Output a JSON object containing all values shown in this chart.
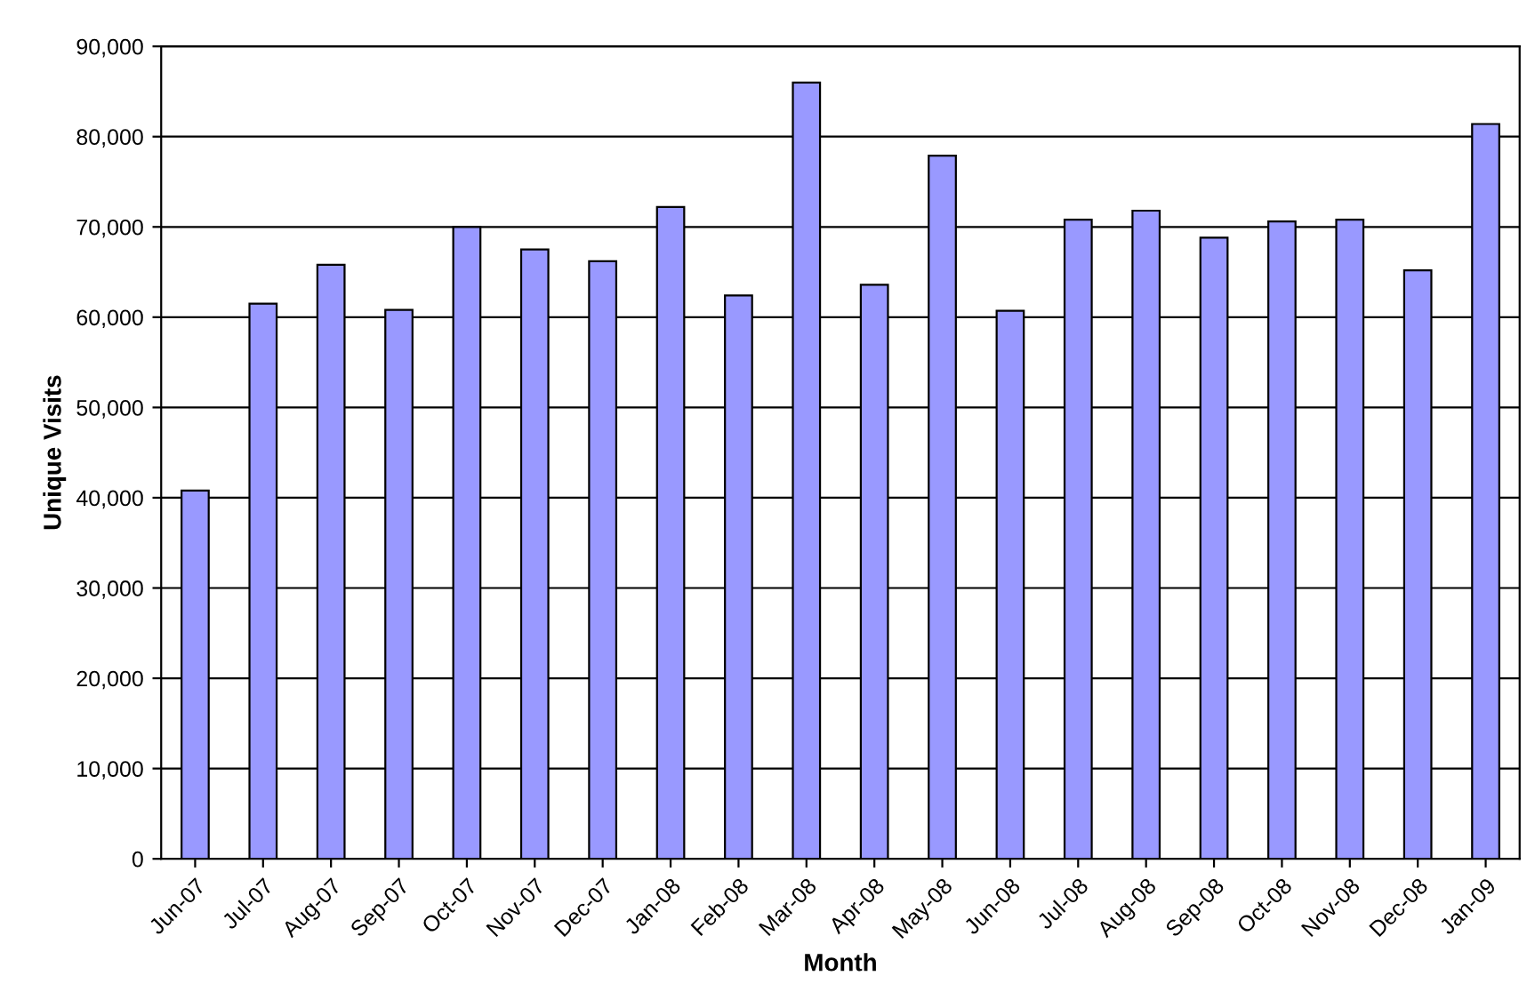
{
  "chart_data": {
    "type": "bar",
    "xlabel": "Month",
    "ylabel": "Unique Visits",
    "categories": [
      "Jun-07",
      "Jul-07",
      "Aug-07",
      "Sep-07",
      "Oct-07",
      "Nov-07",
      "Dec-07",
      "Jan-08",
      "Feb-08",
      "Mar-08",
      "Apr-08",
      "May-08",
      "Jun-08",
      "Jul-08",
      "Aug-08",
      "Sep-08",
      "Oct-08",
      "Nov-08",
      "Dec-08",
      "Jan-09"
    ],
    "values": [
      40800,
      61500,
      65800,
      60800,
      70000,
      67500,
      66200,
      72200,
      62400,
      86000,
      63600,
      77900,
      60700,
      70800,
      71800,
      68800,
      70600,
      70800,
      65200,
      81400
    ],
    "color": "#9999ff",
    "ylim": [
      0,
      90000
    ],
    "yticks": [
      {
        "value": 0,
        "label": "0"
      },
      {
        "value": 10000,
        "label": "10,000"
      },
      {
        "value": 20000,
        "label": "20,000"
      },
      {
        "value": 30000,
        "label": "30,000"
      },
      {
        "value": 40000,
        "label": "40,000"
      },
      {
        "value": 50000,
        "label": "50,000"
      },
      {
        "value": 60000,
        "label": "60,000"
      },
      {
        "value": 70000,
        "label": "70,000"
      },
      {
        "value": 80000,
        "label": "80,000"
      },
      {
        "value": 90000,
        "label": "90,000"
      }
    ],
    "grid": "y",
    "legend": false
  }
}
